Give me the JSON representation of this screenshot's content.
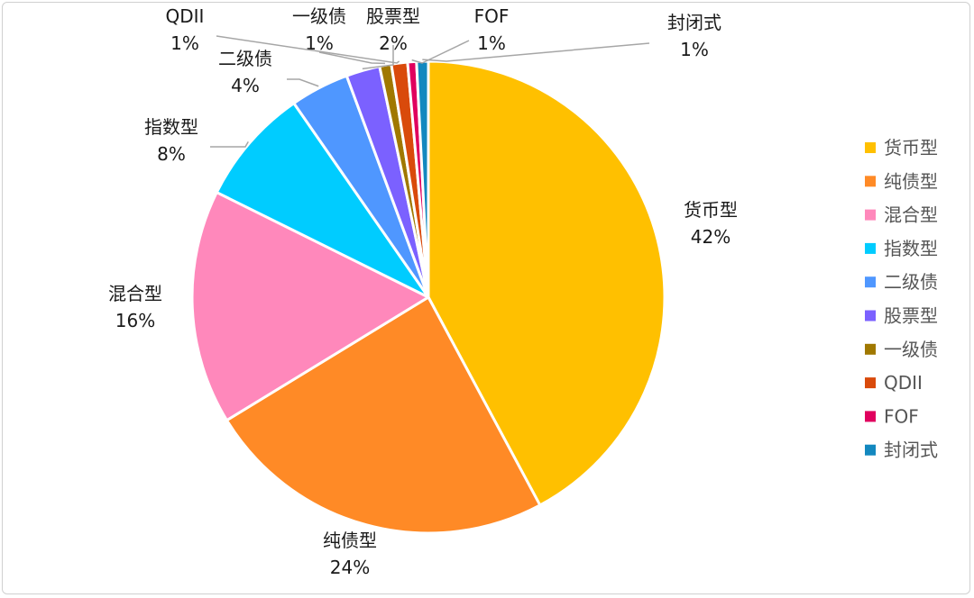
{
  "chart_data": {
    "type": "pie",
    "title": "",
    "slices": [
      {
        "label": "货币型",
        "value": 42,
        "display": "42%",
        "color": "#FFC000"
      },
      {
        "label": "纯债型",
        "value": 24,
        "display": "24%",
        "color": "#FF8A26"
      },
      {
        "label": "混合型",
        "value": 16,
        "display": "16%",
        "color": "#FF88BB"
      },
      {
        "label": "指数型",
        "value": 8,
        "display": "8%",
        "color": "#00CCFF"
      },
      {
        "label": "二级债",
        "value": 4,
        "display": "4%",
        "color": "#4F97FF"
      },
      {
        "label": "股票型",
        "value": 2.3,
        "display": "2%",
        "color": "#7B61FF"
      },
      {
        "label": "一级债",
        "value": 0.8,
        "display": "1%",
        "color": "#A07800"
      },
      {
        "label": "QDII",
        "value": 1.1,
        "display": "1%",
        "color": "#D94A0B"
      },
      {
        "label": "FOF",
        "value": 0.6,
        "display": "1%",
        "color": "#E0005E"
      },
      {
        "label": "封闭式",
        "value": 0.8,
        "display": "1%",
        "color": "#1388BF"
      }
    ],
    "legend_position": "right"
  }
}
